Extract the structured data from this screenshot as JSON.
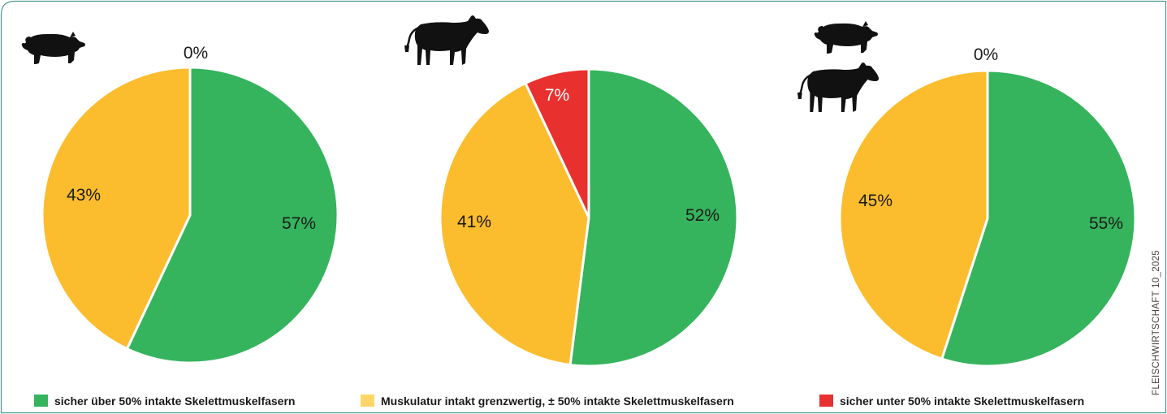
{
  "chart_data": {
    "type": "pie",
    "colors": {
      "green": "#35b45d",
      "yellow": "#fbbd2e",
      "red": "#e8312f"
    },
    "legend": [
      {
        "color": "green",
        "label": "sicher über 50% intakte Skelettmuskelfasern"
      },
      {
        "color": "yellow",
        "label": "Muskulatur intakt grenzwertig, ± 50% intakte Skelettmuskelfasern"
      },
      {
        "color": "red",
        "label": "sicher unter 50% intakte Skelettmuskelfasern"
      }
    ],
    "charts": [
      {
        "animals": [
          "pig-icon"
        ],
        "slices": [
          {
            "color": "green",
            "value": 57,
            "label": "57%"
          },
          {
            "color": "yellow",
            "value": 43,
            "label": "43%"
          },
          {
            "color": "red",
            "value": 0,
            "label": "0%"
          }
        ]
      },
      {
        "animals": [
          "cow-icon"
        ],
        "slices": [
          {
            "color": "green",
            "value": 52,
            "label": "52%"
          },
          {
            "color": "yellow",
            "value": 41,
            "label": "41%"
          },
          {
            "color": "red",
            "value": 7,
            "label": "7%"
          }
        ]
      },
      {
        "animals": [
          "pig-icon",
          "cow-icon"
        ],
        "slices": [
          {
            "color": "green",
            "value": 55,
            "label": "55%"
          },
          {
            "color": "yellow",
            "value": 45,
            "label": "45%"
          },
          {
            "color": "red",
            "value": 0,
            "label": "0%"
          }
        ]
      }
    ],
    "credit": "FLEISCHWIRTSCHAFT 10_2025"
  }
}
